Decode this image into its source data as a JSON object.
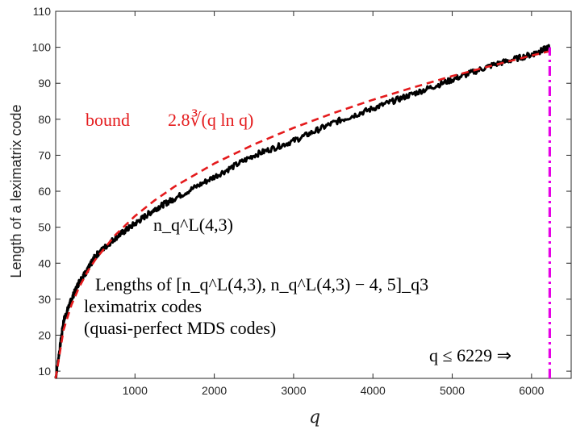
{
  "chart_data": {
    "type": "line",
    "title": "",
    "xlabel": "q",
    "ylabel": "Length of a leximatrix code",
    "xlim": [
      0,
      6500
    ],
    "ylim": [
      8,
      110
    ],
    "x_ticks": [
      "1000",
      "2000",
      "3000",
      "4000",
      "5000",
      "6000"
    ],
    "y_ticks": [
      "10",
      "20",
      "30",
      "40",
      "50",
      "60",
      "70",
      "80",
      "90",
      "100",
      "110"
    ],
    "grid": false,
    "series": [
      {
        "name": "n_q^L(4,3)",
        "color": "#000000",
        "style": "solid",
        "x": [
          0,
          100,
          200,
          300,
          400,
          500,
          750,
          1000,
          1250,
          1500,
          2000,
          2500,
          3000,
          3500,
          4000,
          4500,
          5000,
          5500,
          6000,
          6229
        ],
        "y": [
          8,
          24,
          30,
          35,
          38,
          42,
          47,
          51,
          55,
          58,
          64,
          70,
          74,
          79,
          83,
          87,
          91,
          95,
          98,
          100
        ]
      },
      {
        "name": "bound 2.8∛(q ln q)",
        "color": "#e41a1c",
        "style": "dashed",
        "x": [
          0,
          100,
          200,
          300,
          400,
          500,
          750,
          1000,
          1250,
          1500,
          2000,
          2500,
          3000,
          3500,
          4000,
          4500,
          5000,
          5500,
          6000,
          6229
        ],
        "y": [
          8,
          21.5,
          28.5,
          33.5,
          37.6,
          41.0,
          47.8,
          53.1,
          57.5,
          61.3,
          67.7,
          73.0,
          77.6,
          81.7,
          85.4,
          88.8,
          92.0,
          94.9,
          97.7,
          98.9
        ]
      },
      {
        "name": "q ≤ 6229 limit",
        "color": "#e600e6",
        "style": "dashdot",
        "x": [
          6229,
          6229
        ],
        "y": [
          8,
          100
        ]
      }
    ],
    "annotations": {
      "bound_label": "bound",
      "bound_formula": "2.8∛(q ln q)",
      "curve_label": "n_q^L(4,3)",
      "codes_line1": "Lengths of [n_q^L(4,3), n_q^L(4,3) − 4, 5]_q3",
      "codes_line2": "leximatrix codes",
      "codes_line3": "(quasi-perfect MDS codes)",
      "limit_label": "q ≤ 6229 ⇒"
    }
  }
}
